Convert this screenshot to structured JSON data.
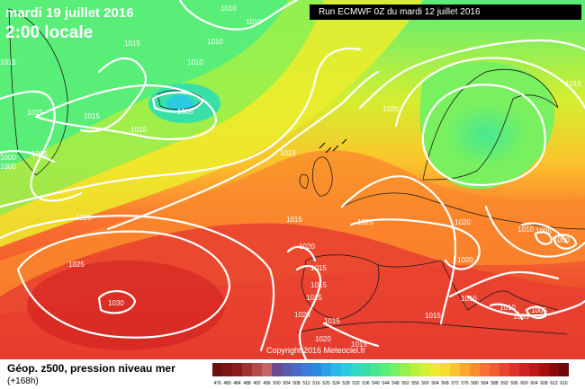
{
  "header": {
    "date": "mardi 19 juillet 2016",
    "time": "2:00 locale",
    "run": "Run ECMWF 0Z du mardi 12 juillet 2016"
  },
  "footer": {
    "title": "Géop. z500, pression niveau mer",
    "lead": "(+168h)",
    "copyright": "Copyright 2016 Meteociel.fr"
  },
  "legend_scale": {
    "labels": [
      "476",
      "480",
      "484",
      "488",
      "492",
      "496",
      "500",
      "504",
      "508",
      "512",
      "516",
      "520",
      "524",
      "528",
      "532",
      "536",
      "540",
      "544",
      "548",
      "552",
      "556",
      "560",
      "564",
      "568",
      "572",
      "576",
      "580",
      "584",
      "588",
      "592",
      "596",
      "600",
      "604",
      "608",
      "612",
      "616"
    ],
    "colors": [
      "#6b0f0f",
      "#7d1414",
      "#8c1c1c",
      "#a03232",
      "#b44a4a",
      "#c46464",
      "#6a4a8c",
      "#5a5aaa",
      "#4a6ac8",
      "#3a7ad8",
      "#2a8ae0",
      "#2aa0e8",
      "#28b8ea",
      "#28cce0",
      "#30d8c8",
      "#38e0a8",
      "#48e890",
      "#58ee78",
      "#78f060",
      "#98f04c",
      "#b8f03c",
      "#d4ee30",
      "#ecec2c",
      "#f8dc2c",
      "#fcc42c",
      "#fca82c",
      "#fc8c2c",
      "#fa7030",
      "#f25a30",
      "#ea4430",
      "#e03028",
      "#d02020",
      "#c01818",
      "#a81010",
      "#8c0c0c",
      "#6e0808"
    ]
  },
  "isobar_labels": [
    "1010",
    "1010",
    "1015",
    "1010",
    "1010",
    "1015",
    "1005",
    "1010",
    "1005",
    "1000",
    "1000",
    "1015",
    "1020",
    "1020",
    "1015",
    "1020",
    "1025",
    "1030",
    "1020",
    "1015",
    "1015",
    "1020",
    "1015",
    "1015",
    "1020",
    "1015",
    "1015",
    "1020",
    "1020",
    "1010",
    "1010",
    "1005",
    "1000",
    "1015",
    "1010",
    "1005",
    "1005",
    "1015",
    "1015"
  ]
}
